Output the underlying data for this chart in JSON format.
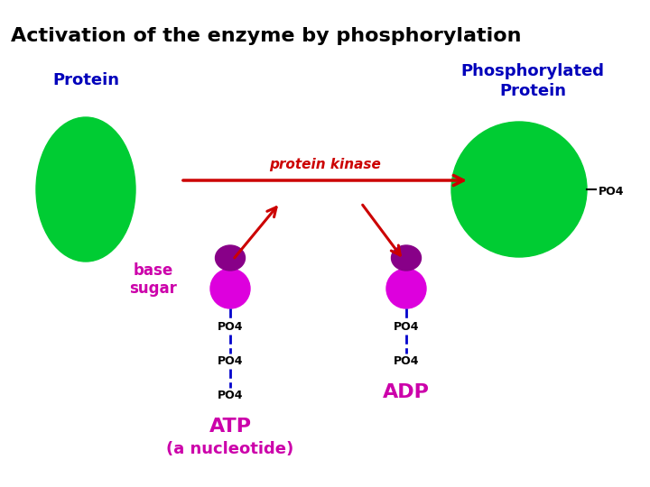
{
  "title": "Activation of the enzyme by phosphorylation",
  "title_fontsize": 16,
  "title_color": "#000000",
  "title_fontweight": "bold",
  "bg_color": "#ffffff",
  "protein_label": "Protein",
  "protein_label_color": "#0000bb",
  "protein_label_fontsize": 13,
  "phospho_label_line1": "Phosphorylated",
  "phospho_label_line2": "Protein",
  "phospho_label_color": "#0000bb",
  "phospho_label_fontsize": 13,
  "green_color": "#00cc33",
  "magenta_color": "#dd00dd",
  "dark_magenta": "#880088",
  "kinase_label": "protein kinase",
  "kinase_label_color": "#cc0000",
  "kinase_label_fontsize": 11,
  "atp_label": "ATP",
  "atp_sub_label": "(a nucleotide)",
  "adp_label": "ADP",
  "nucleotide_label_color": "#cc00aa",
  "nucleotide_label_fontsize": 14,
  "base_sugar_label_line1": "base",
  "base_sugar_label_line2": "sugar",
  "base_sugar_color": "#cc00aa",
  "base_sugar_fontsize": 12,
  "po4_label": "PO4",
  "po4_color": "#000000",
  "po4_fontsize": 9,
  "po4_line_color": "#0000cc",
  "arrow_color": "#cc0000",
  "po4_tag_color": "#000000",
  "po4_tag_fontsize": 9
}
